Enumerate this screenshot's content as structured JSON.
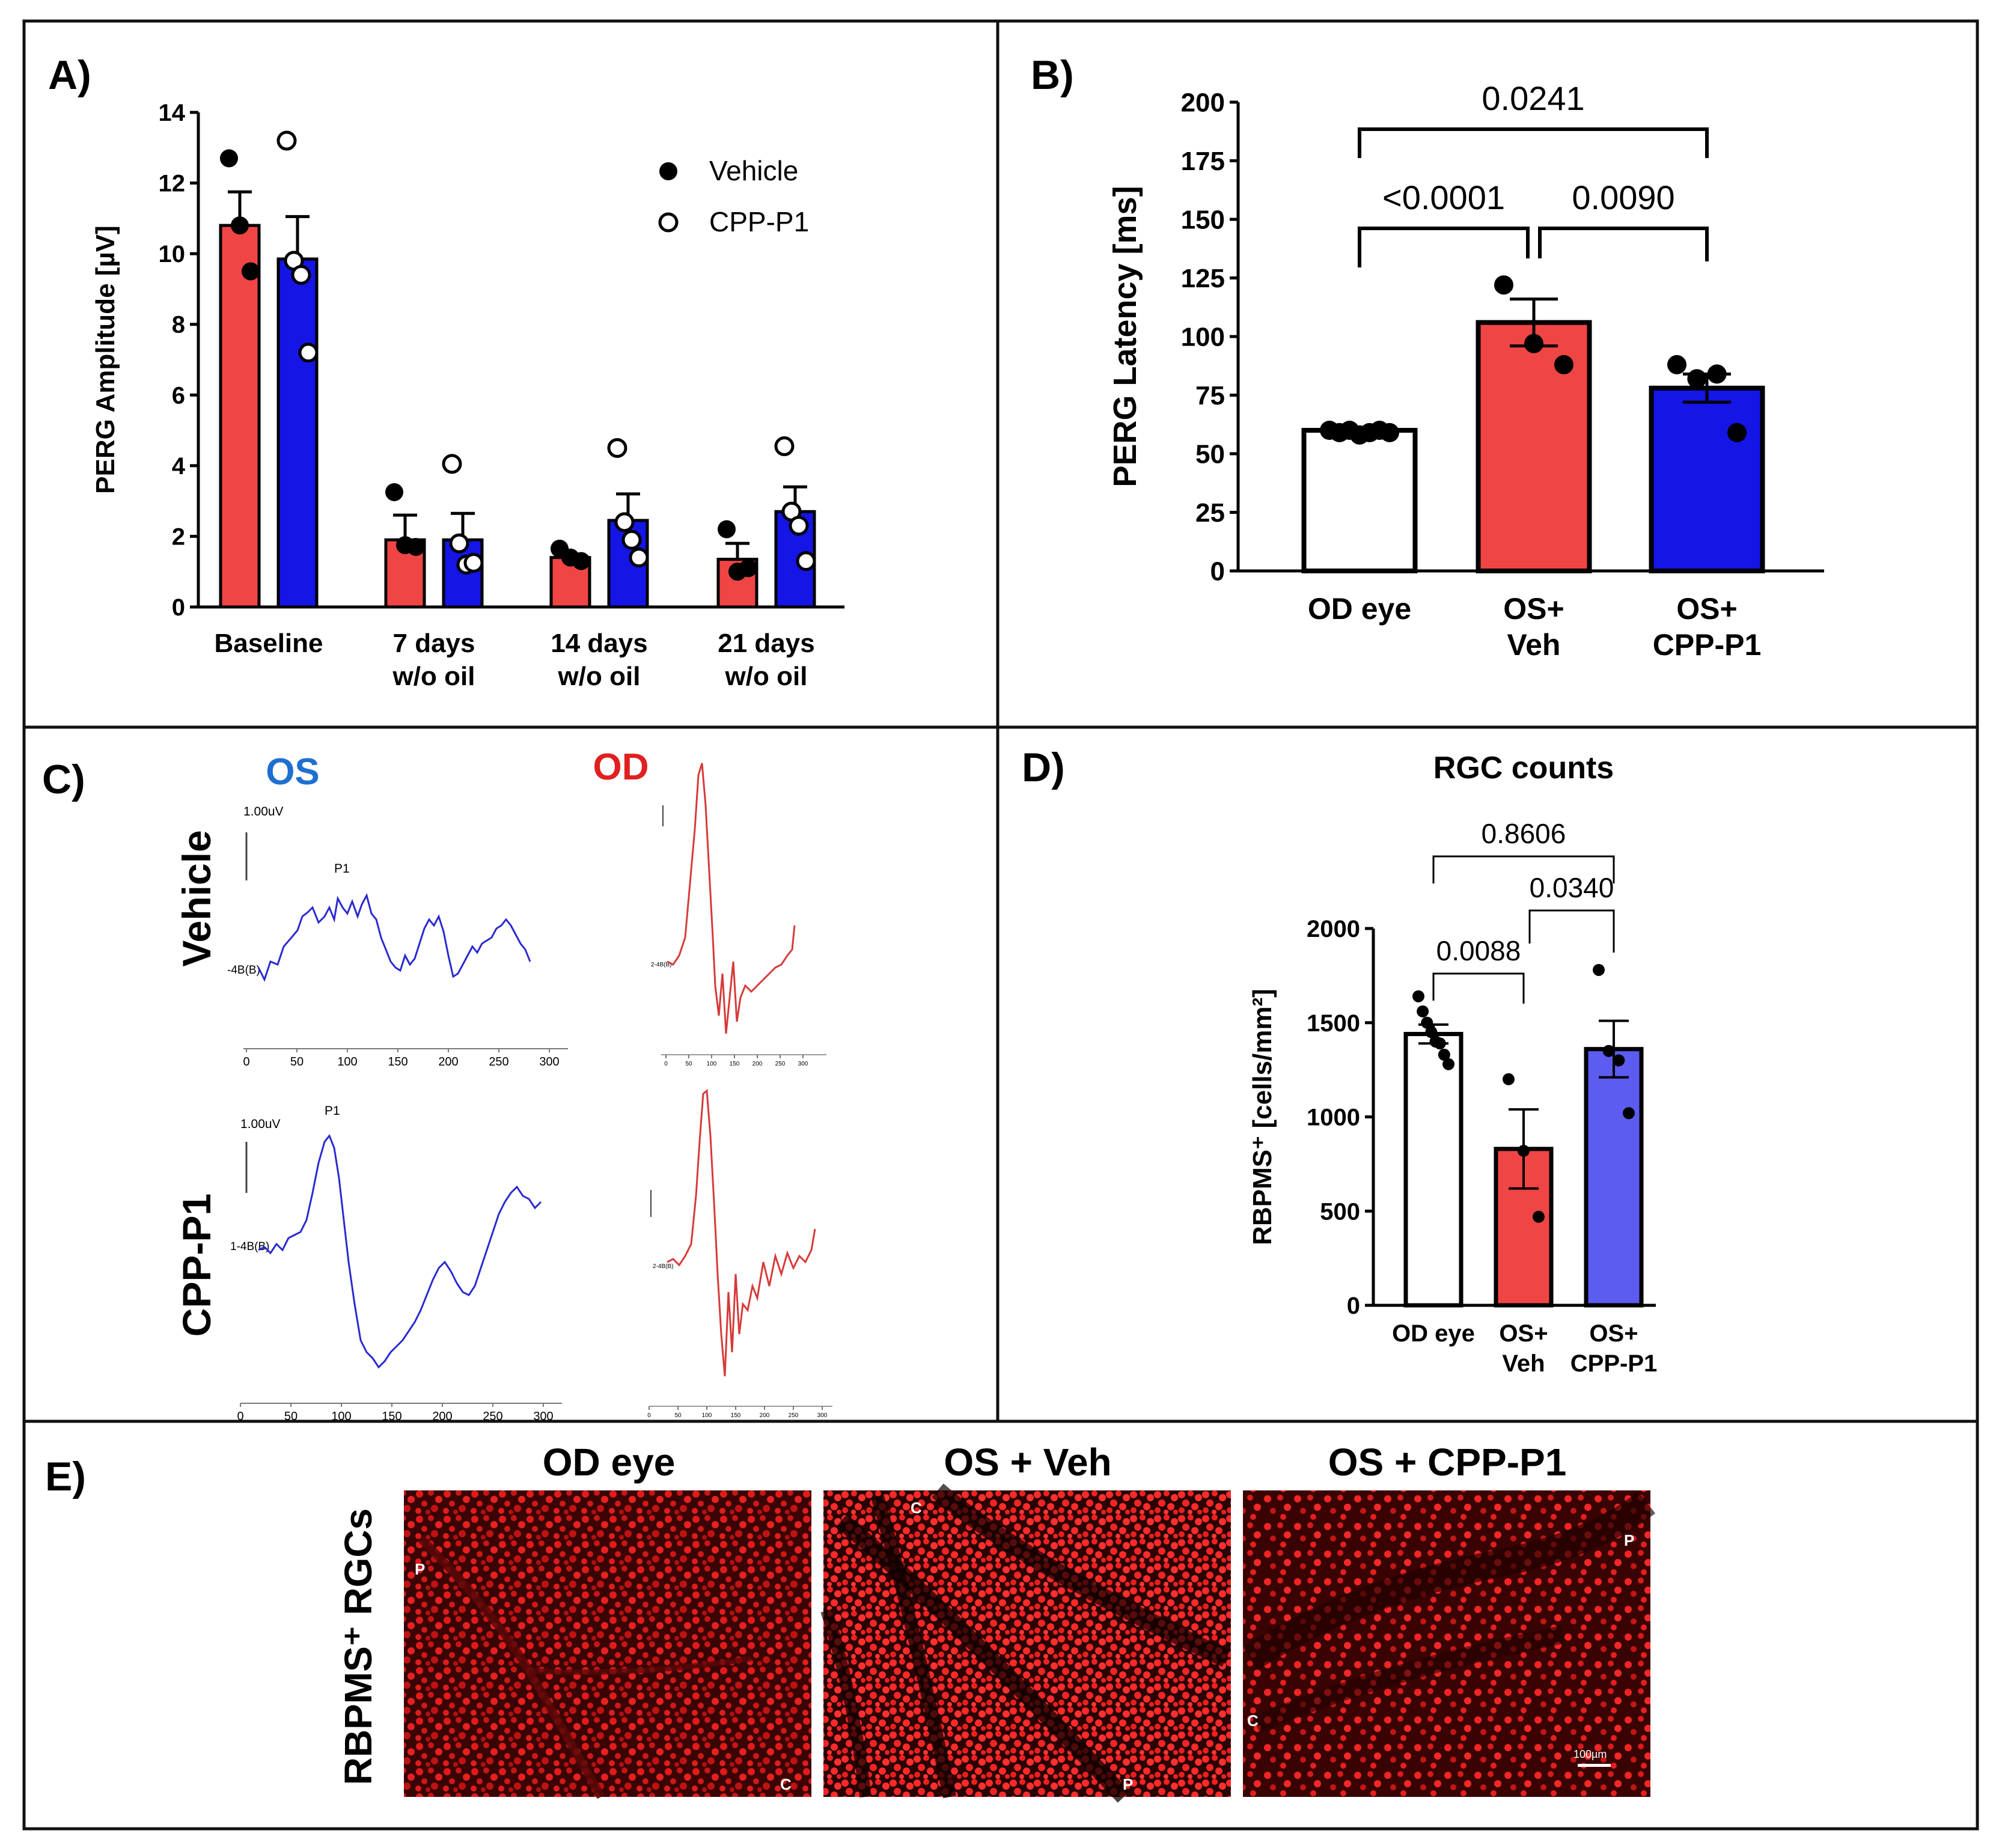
{
  "panels": {
    "a": {
      "label": "A)"
    },
    "b": {
      "label": "B)"
    },
    "c": {
      "label": "C)"
    },
    "d": {
      "label": "D)"
    },
    "e": {
      "label": "E)"
    }
  },
  "colors": {
    "red": "#f04545",
    "blue": "#1515e6",
    "white": "#ffffff",
    "d_red": "#f04545",
    "d_blue": "#5c5cf0",
    "trace_blue": "#2a2ad0",
    "trace_red": "#d63a3a"
  },
  "chart_data": [
    {
      "id": "A",
      "type": "bar",
      "title": "",
      "ylabel": "PERG Amplitude [µV]",
      "ylim": [
        0,
        14
      ],
      "yticks": [
        "0",
        "2",
        "4",
        "6",
        "8",
        "10",
        "12",
        "14"
      ],
      "categories": [
        [
          "Baseline"
        ],
        [
          "7 days",
          "w/o oil"
        ],
        [
          "14 days",
          "w/o oil"
        ],
        [
          "21 days",
          "w/o oil"
        ]
      ],
      "legend": [
        "Vehicle",
        "CPP-P1"
      ],
      "legend_position": "top-right",
      "series": [
        {
          "name": "Vehicle",
          "values": [
            10.8,
            1.9,
            1.4,
            1.35
          ],
          "errors": [
            0.95,
            0.7,
            0.1,
            0.45
          ],
          "points": [
            [
              12.7,
              10.8,
              9.5
            ],
            [
              3.25,
              1.75,
              1.7
            ],
            [
              1.65,
              1.4,
              1.3
            ],
            [
              2.2,
              1.0,
              1.1
            ]
          ]
        },
        {
          "name": "CPP-P1",
          "values": [
            9.85,
            1.9,
            2.45,
            2.7
          ],
          "errors": [
            1.2,
            0.75,
            0.75,
            0.7
          ],
          "points": [
            [
              13.2,
              9.8,
              9.4,
              7.2
            ],
            [
              4.05,
              1.8,
              1.2,
              1.25
            ],
            [
              4.5,
              2.4,
              1.9,
              1.4
            ],
            [
              4.55,
              2.7,
              2.3,
              1.3
            ]
          ]
        }
      ]
    },
    {
      "id": "B",
      "type": "bar",
      "ylabel": "PERG Latency [ms]",
      "ylim": [
        0,
        200
      ],
      "yticks": [
        "0",
        "25",
        "50",
        "75",
        "100",
        "125",
        "150",
        "175",
        "200"
      ],
      "categories": [
        [
          "OD eye"
        ],
        [
          "OS+",
          "Veh"
        ],
        [
          "OS+",
          "CPP-P1"
        ]
      ],
      "values": [
        60,
        106,
        78
      ],
      "errors": [
        1,
        10,
        6
      ],
      "points": [
        [
          60,
          59,
          60,
          58,
          59,
          60,
          59
        ],
        [
          122,
          97,
          88
        ],
        [
          88,
          82,
          84,
          59
        ]
      ],
      "comparisons": [
        {
          "from": 0,
          "to": 2,
          "label": "0.0241",
          "level": 0
        },
        {
          "from": 0,
          "to": 1,
          "label": "<0.0001",
          "level": 1
        },
        {
          "from": 1,
          "to": 2,
          "label": "0.0090",
          "level": 1
        }
      ]
    },
    {
      "id": "D",
      "type": "bar",
      "title": "RGC counts",
      "ylabel": "RBPMS⁺ [cells/mm²]",
      "ylim": [
        0,
        2000
      ],
      "yticks": [
        "0",
        "500",
        "1000",
        "1500",
        "2000"
      ],
      "categories": [
        [
          "OD eye"
        ],
        [
          "OS+",
          "Veh"
        ],
        [
          "OS+",
          "CPP-P1"
        ]
      ],
      "values": [
        1440,
        830,
        1360
      ],
      "errors": [
        50,
        210,
        150
      ],
      "points": [
        [
          1640,
          1560,
          1500,
          1450,
          1400,
          1390,
          1330,
          1280
        ],
        [
          1200,
          820,
          470
        ],
        [
          1780,
          1350,
          1300,
          1020
        ]
      ],
      "comparisons": [
        {
          "from": 0,
          "to": 2,
          "label": "0.8606",
          "level": 0
        },
        {
          "from": 1,
          "to": 2,
          "label": "0.0340",
          "level": 1
        },
        {
          "from": 0,
          "to": 1,
          "label": "0.0088",
          "level": 2
        }
      ]
    }
  ],
  "panel_c": {
    "os_label": "OS",
    "od_label": "OD",
    "rows": [
      "Vehicle",
      "CPP-P1"
    ],
    "scale_label": "1.00uV",
    "peak_label": "P1",
    "baseline_label_1": "-4B(B)",
    "baseline_label_2": "1-4B(B)",
    "od_small_label": "2-4B(B)",
    "xticks_big": [
      "0",
      "50",
      "100",
      "150",
      "200",
      "250",
      "300"
    ],
    "xticks_small": [
      "0",
      "50",
      "100",
      "150",
      "200",
      "250",
      "300"
    ]
  },
  "panel_e": {
    "titles": [
      "OD eye",
      "OS + Veh",
      "OS + CPP-P1"
    ],
    "ylabel": "RBPMS⁺ RGCs",
    "markers": [
      [
        "P",
        "C"
      ],
      [
        "C",
        "P"
      ],
      [
        "P",
        "C"
      ]
    ],
    "scalebar": "100µm"
  }
}
